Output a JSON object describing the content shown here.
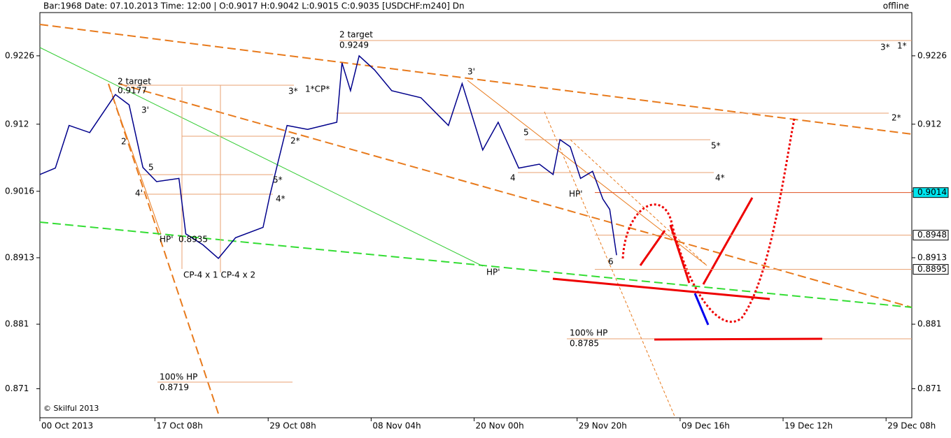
{
  "header": {
    "info": "Bar:1968  Date: 07.10.2013  Time:  12:00  | O:0.9017 H:0.9042 L:0.9015 C:0.9035   [USDCHF:m240]  Dn",
    "status": "offline",
    "copyright": "© Skilful 2013"
  },
  "chart_data": {
    "type": "line",
    "x": [
      0,
      9,
      17,
      29,
      44,
      52,
      60,
      68,
      81,
      85,
      95,
      104,
      114,
      130,
      134,
      144,
      156,
      173,
      176,
      181,
      186,
      195,
      205,
      222,
      238,
      246,
      258,
      267,
      279,
      291,
      299,
      303,
      309,
      315,
      322,
      328,
      332,
      336
    ],
    "series": [
      {
        "name": "USDCHF",
        "color": "#00008b",
        "values": [
          0.9042,
          0.9052,
          0.9118,
          0.9107,
          0.9166,
          0.915,
          0.9053,
          0.9031,
          0.9036,
          0.895,
          0.8933,
          0.8912,
          0.8944,
          0.896,
          0.901,
          0.9118,
          0.9112,
          0.9123,
          0.9215,
          0.9172,
          0.9226,
          0.9204,
          0.9172,
          0.9161,
          0.9118,
          0.9183,
          0.908,
          0.9123,
          0.9052,
          0.9058,
          0.9042,
          0.9096,
          0.9085,
          0.9036,
          0.9047,
          0.9004,
          0.8988,
          0.8917
        ]
      }
    ],
    "xlim": [
      0,
      508
    ],
    "xticks": [
      {
        "value": 0,
        "label": "00 Oct 2013"
      },
      {
        "value": 67,
        "label": "17 Oct 08h"
      },
      {
        "value": 133,
        "label": "29 Oct 08h"
      },
      {
        "value": 193,
        "label": "08 Nov 04h"
      },
      {
        "value": 253,
        "label": "20 Nov 00h"
      },
      {
        "value": 313,
        "label": "29 Nov 20h"
      },
      {
        "value": 373,
        "label": "09 Dec 16h"
      },
      {
        "value": 433,
        "label": "19 Dec 12h"
      },
      {
        "value": 493,
        "label": "29 Dec 08h"
      }
    ],
    "ylim": [
      0.8665,
      0.9293
    ],
    "yticks": [
      0.9226,
      0.912,
      0.9016,
      0.8913,
      0.881,
      0.871
    ],
    "levels": [
      {
        "value": 0.9014,
        "color": "#00e5ee"
      },
      {
        "value": 0.8948,
        "color": "#ffffff"
      },
      {
        "value": 0.8895,
        "color": "#ffffff"
      }
    ],
    "annotations": [
      "2 target",
      "0.9177",
      "2 target",
      "0.9249",
      "3'",
      "2",
      "5",
      "4'",
      "HP'",
      "0.8935",
      "CP-4 x 1 CP-4 x 2",
      "3*",
      "1*CP*",
      "2*",
      "5*",
      "4*",
      "3'",
      "5",
      "4",
      "HP'",
      "6",
      "HP'",
      "5*",
      "4*",
      "2*",
      "3*",
      "1*",
      "100% HP",
      "0.8785",
      "100% HP",
      "0.8719"
    ]
  }
}
